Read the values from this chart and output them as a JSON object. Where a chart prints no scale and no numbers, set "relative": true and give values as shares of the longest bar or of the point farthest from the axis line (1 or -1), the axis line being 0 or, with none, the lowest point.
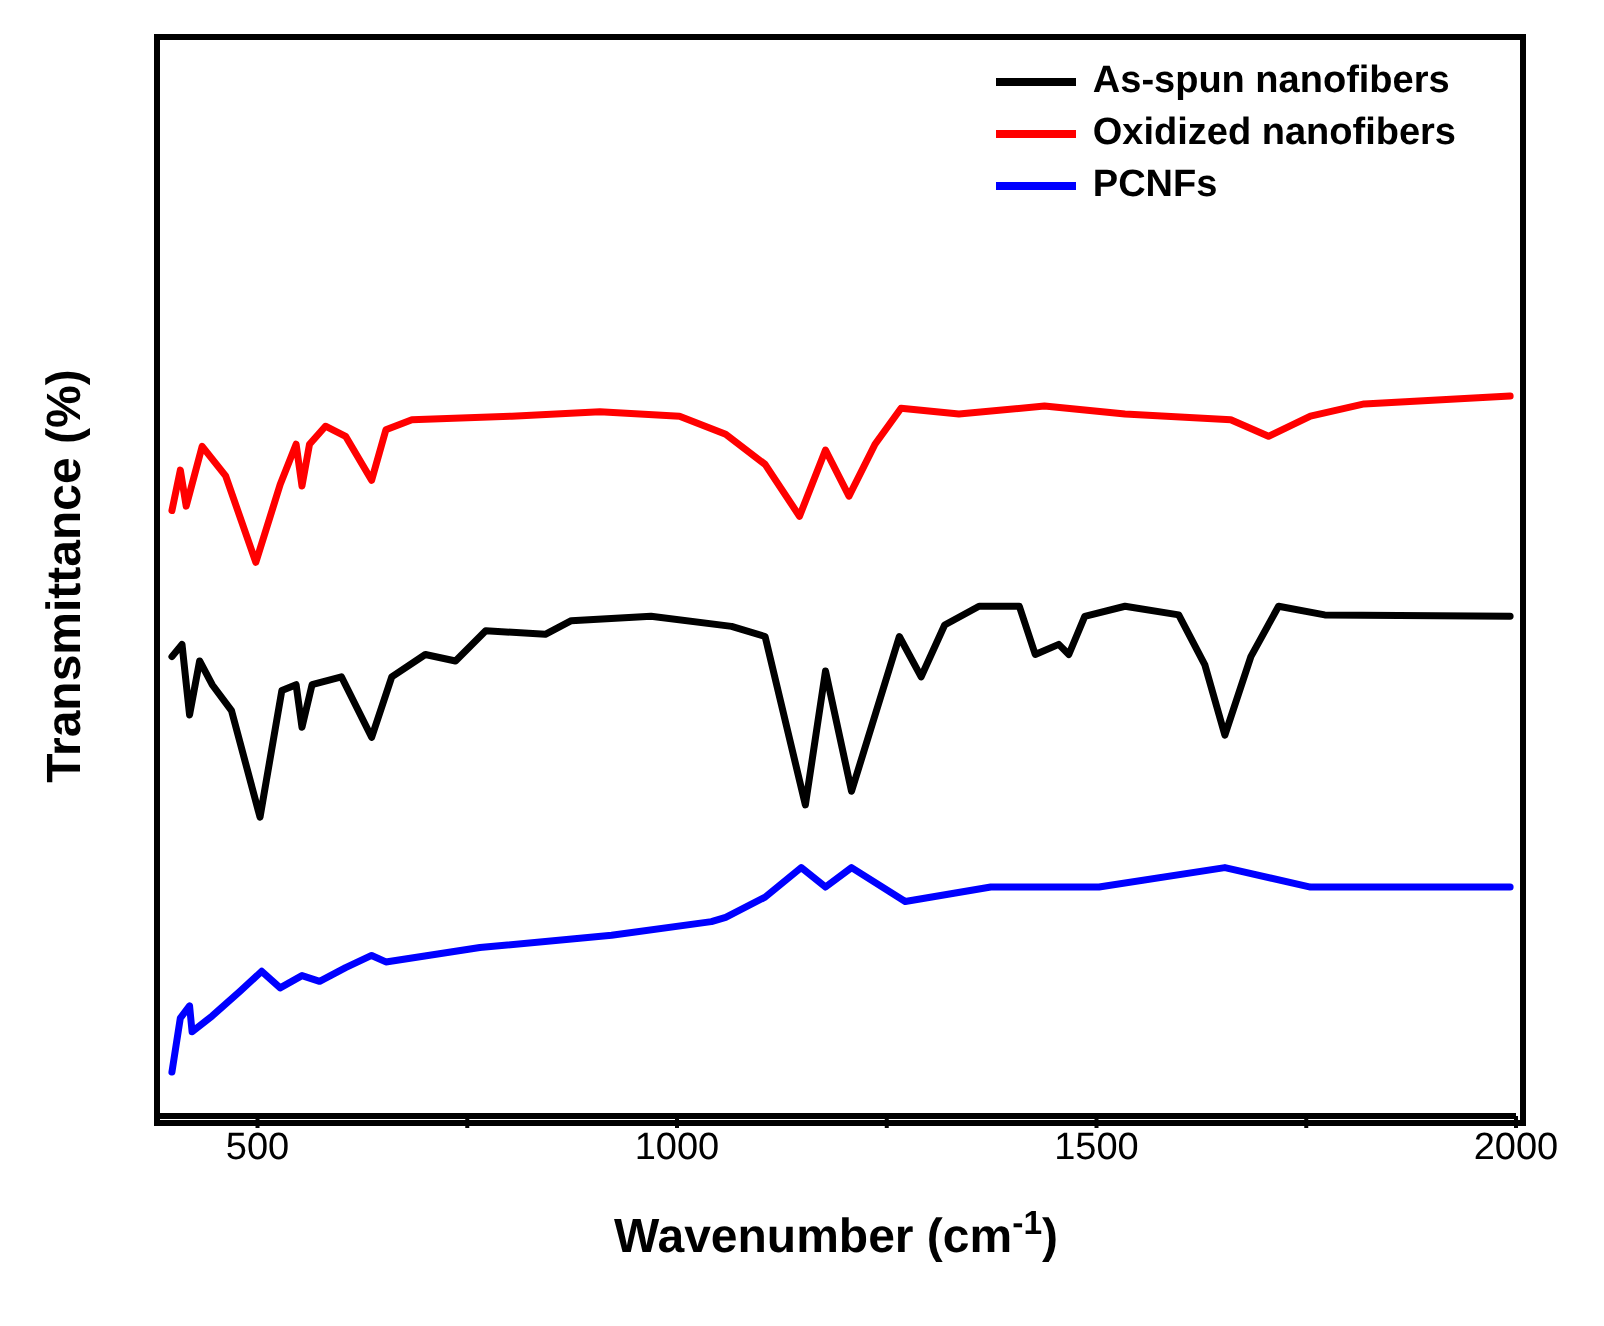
{
  "chart_data": {
    "type": "line",
    "relative": true,
    "xlabel": "Wavenumber (cm$^{-1}$)",
    "ylabel": "Transmittance (%)",
    "xlim": [
      379,
      2000
    ],
    "xticks": [
      500,
      {
        "value": 750,
        "label": null
      },
      1000,
      {
        "value": 1250,
        "label": null
      },
      1500,
      {
        "value": 1750,
        "label": null
      },
      2000
    ],
    "legend": "top right",
    "marker": "none",
    "line_style": "solid",
    "series": [
      {
        "name": "As-spun nanofibers",
        "color": "#000000",
        "x": [
          398,
          410,
          419,
          431,
          446,
          469,
          503,
          529,
          546,
          553,
          565,
          600,
          636,
          660,
          700,
          736,
          772,
          843,
          874,
          969,
          1065,
          1105,
          1153,
          1177,
          1208,
          1265,
          1291,
          1319,
          1360,
          1408,
          1427,
          1455,
          1467,
          1486,
          1534,
          1598,
          1629,
          1653,
          1684,
          1717,
          1772,
          1993
        ],
        "values": [
          0.638,
          0.655,
          0.557,
          0.632,
          0.599,
          0.563,
          0.415,
          0.591,
          0.599,
          0.54,
          0.599,
          0.61,
          0.526,
          0.61,
          0.641,
          0.632,
          0.674,
          0.669,
          0.688,
          0.694,
          0.68,
          0.666,
          0.432,
          0.618,
          0.451,
          0.666,
          0.61,
          0.682,
          0.708,
          0.708,
          0.641,
          0.655,
          0.641,
          0.694,
          0.708,
          0.696,
          0.627,
          0.529,
          0.638,
          0.708,
          0.696,
          0.694
        ]
      },
      {
        "name": "Oxidized nanofibers",
        "color": "#ff0000",
        "x": [
          398,
          408,
          415,
          434,
          462,
          498,
          527,
          546,
          553,
          562,
          581,
          605,
          636,
          653,
          684,
          803,
          908,
          1003,
          1058,
          1105,
          1146,
          1177,
          1205,
          1236,
          1267,
          1336,
          1438,
          1534,
          1660,
          1705,
          1755,
          1819,
          1993
        ],
        "values": [
          0.841,
          0.897,
          0.847,
          0.93,
          0.889,
          0.769,
          0.877,
          0.933,
          0.875,
          0.933,
          0.958,
          0.944,
          0.883,
          0.953,
          0.967,
          0.972,
          0.978,
          0.972,
          0.947,
          0.905,
          0.833,
          0.925,
          0.861,
          0.933,
          0.983,
          0.975,
          0.986,
          0.975,
          0.967,
          0.944,
          0.972,
          0.989,
          1
        ]
      },
      {
        "name": "PCNFs",
        "color": "#0000ff",
        "x": [
          398,
          408,
          419,
          422,
          446,
          479,
          505,
          527,
          553,
          574,
          605,
          636,
          653,
          765,
          922,
          1041,
          1058,
          1105,
          1148,
          1177,
          1208,
          1272,
          1374,
          1503,
          1653,
          1755,
          1993
        ],
        "values": [
          0.061,
          0.136,
          0.153,
          0.117,
          0.139,
          0.173,
          0.201,
          0.178,
          0.195,
          0.187,
          0.206,
          0.223,
          0.214,
          0.234,
          0.251,
          0.27,
          0.276,
          0.304,
          0.345,
          0.318,
          0.345,
          0.298,
          0.318,
          0.318,
          0.345,
          0.318,
          0.318
        ]
      }
    ]
  }
}
